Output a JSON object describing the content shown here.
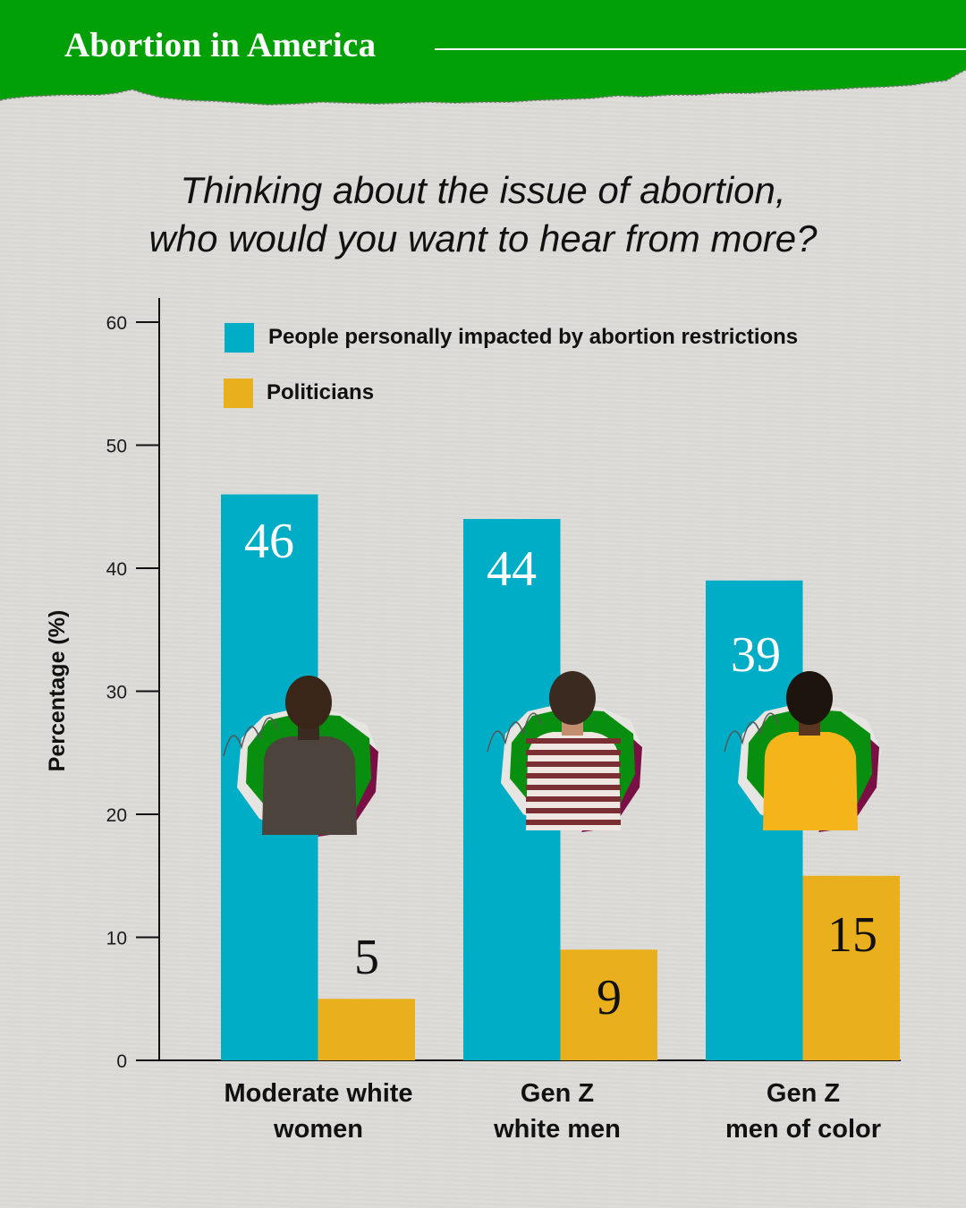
{
  "header": {
    "title": "Abortion in America",
    "brand_color": "#00a006"
  },
  "question": {
    "line1": "Thinking about the issue of abortion,",
    "line2": "who would you want to hear from more?"
  },
  "chart_data": {
    "type": "bar",
    "title": "Thinking about the issue of abortion, who would you want to hear from more?",
    "xlabel": "",
    "ylabel": "Percentage (%)",
    "ylim": [
      0,
      60
    ],
    "yticks": [
      0,
      10,
      20,
      30,
      40,
      50,
      60
    ],
    "grid": false,
    "legend_position": "top-left",
    "categories": [
      [
        "Moderate white",
        "women"
      ],
      [
        "Gen Z",
        "white men"
      ],
      [
        "Gen Z",
        "men of color"
      ]
    ],
    "series": [
      {
        "name": "People personally impacted by abortion restrictions",
        "color": "#00adc7",
        "label_color": "#ffffff",
        "values": [
          46,
          44,
          39
        ]
      },
      {
        "name": "Politicians",
        "color": "#eaaf1c",
        "label_color": "#111111",
        "values": [
          5,
          9,
          15
        ]
      }
    ],
    "photos": [
      {
        "icon": "woman-back-photo-icon"
      },
      {
        "icon": "man-striped-shirt-photo-icon"
      },
      {
        "icon": "man-yellow-shirt-photo-icon"
      }
    ]
  }
}
